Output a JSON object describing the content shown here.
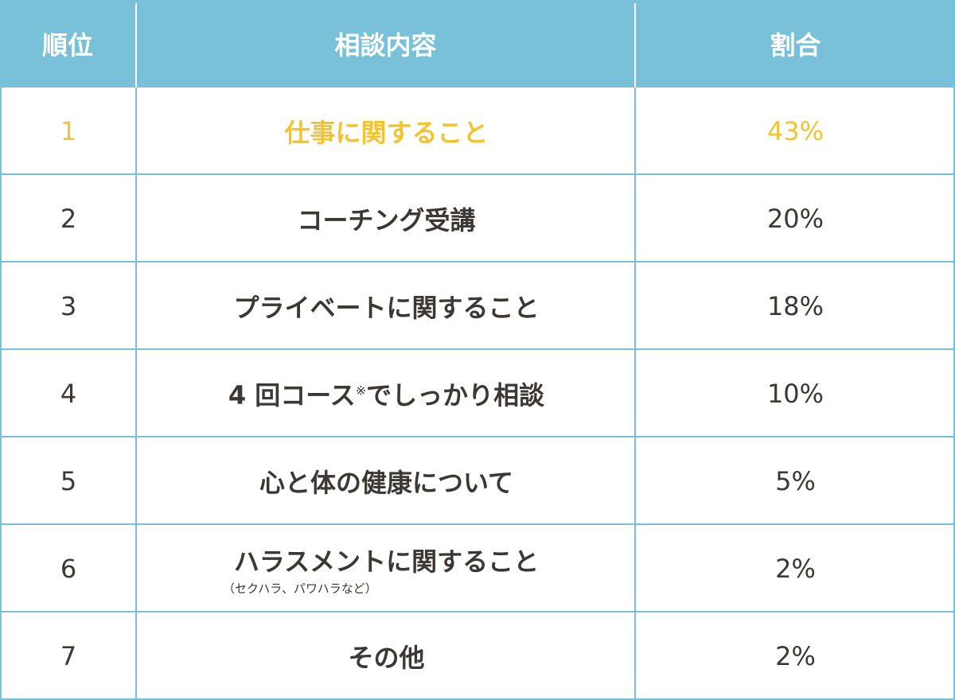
{
  "header": {
    "rank": "順位",
    "content": "相談内容",
    "ratio": "割合"
  },
  "colors": {
    "header_bg": "#79c1d9",
    "grid": "#79c1d9",
    "text": "#3c3833",
    "highlight": "#f2c431"
  },
  "rows": [
    {
      "rank": "1",
      "content": "仕事に関すること",
      "ratio": "43%"
    },
    {
      "rank": "2",
      "content": "コーチング受講",
      "ratio": "20%"
    },
    {
      "rank": "3",
      "content": "プライベートに関すること",
      "ratio": "18%"
    },
    {
      "rank": "4",
      "content_prefix": "4 回コース",
      "content_mark": "※",
      "content_suffix": "でしっかり相談",
      "ratio": "10%"
    },
    {
      "rank": "5",
      "content": "心と体の健康について",
      "ratio": "5%"
    },
    {
      "rank": "6",
      "content": "ハラスメントに関すること",
      "note": "（セクハラ、パワハラなど）",
      "ratio": "2%"
    },
    {
      "rank": "7",
      "content": "その他",
      "ratio": "2%"
    }
  ]
}
